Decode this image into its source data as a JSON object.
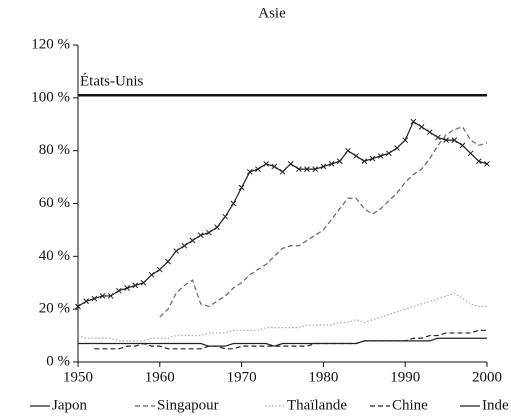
{
  "chart_data": {
    "type": "line",
    "title": "Asie",
    "x": [
      1950,
      1951,
      1952,
      1953,
      1954,
      1955,
      1956,
      1957,
      1958,
      1959,
      1960,
      1961,
      1962,
      1963,
      1964,
      1965,
      1966,
      1967,
      1968,
      1969,
      1970,
      1971,
      1972,
      1973,
      1974,
      1975,
      1976,
      1977,
      1978,
      1979,
      1980,
      1981,
      1982,
      1983,
      1984,
      1985,
      1986,
      1987,
      1988,
      1989,
      1990,
      1991,
      1992,
      1993,
      1994,
      1995,
      1996,
      1997,
      1998,
      1999,
      2000
    ],
    "series": [
      {
        "name": "Japon",
        "color": "#222222",
        "style": "solid",
        "marker": "x",
        "values": [
          21,
          23,
          24,
          25,
          25,
          27,
          28,
          29,
          30,
          33,
          35,
          38,
          42,
          44,
          46,
          48,
          49,
          51,
          55,
          60,
          66,
          72,
          73,
          75,
          74,
          72,
          75,
          73,
          73,
          73,
          74,
          75,
          76,
          80,
          78,
          76,
          77,
          78,
          79,
          81,
          84,
          91,
          89,
          87,
          85,
          84,
          84,
          82,
          79,
          76,
          75
        ]
      },
      {
        "name": "Singapour",
        "color": "#666666",
        "style": "dashed",
        "values": [
          null,
          null,
          null,
          null,
          null,
          null,
          null,
          null,
          null,
          null,
          17,
          20,
          26,
          29,
          31,
          22,
          21,
          23,
          25,
          28,
          30,
          33,
          35,
          37,
          40,
          43,
          44,
          44,
          46,
          48,
          50,
          54,
          58,
          62,
          62,
          58,
          56,
          58,
          61,
          64,
          68,
          71,
          73,
          77,
          82,
          86,
          88,
          89,
          84,
          82,
          83
        ]
      },
      {
        "name": "Thaïlande",
        "color": "#aaaaaa",
        "style": "dotted",
        "values": [
          10,
          9,
          9,
          9,
          9,
          8,
          8,
          8,
          8,
          9,
          9,
          9,
          10,
          10,
          10,
          10,
          11,
          11,
          11,
          12,
          12,
          12,
          12,
          13,
          13,
          13,
          13,
          13,
          14,
          14,
          14,
          14,
          15,
          15,
          16,
          15,
          16,
          17,
          18,
          19,
          20,
          21,
          22,
          23,
          24,
          25,
          26,
          24,
          22,
          21,
          21
        ]
      },
      {
        "name": "Chine",
        "color": "#222222",
        "style": "dashed",
        "values": [
          null,
          null,
          5,
          5,
          5,
          5,
          6,
          6,
          7,
          6,
          6,
          5,
          5,
          5,
          5,
          5,
          6,
          6,
          5,
          5,
          6,
          6,
          6,
          6,
          6,
          6,
          6,
          6,
          6,
          7,
          7,
          7,
          7,
          7,
          7,
          8,
          8,
          8,
          8,
          8,
          8,
          9,
          9,
          10,
          10,
          11,
          11,
          11,
          11,
          12,
          12
        ]
      },
      {
        "name": "Inde",
        "color": "#222222",
        "style": "solid",
        "values": [
          7,
          7,
          7,
          7,
          7,
          7,
          7,
          7,
          7,
          7,
          7,
          7,
          7,
          7,
          7,
          7,
          6,
          6,
          6,
          7,
          7,
          7,
          7,
          7,
          6,
          7,
          7,
          7,
          7,
          7,
          7,
          7,
          7,
          7,
          7,
          8,
          8,
          8,
          8,
          8,
          8,
          8,
          8,
          8,
          9,
          9,
          9,
          9,
          9,
          9,
          9
        ]
      }
    ],
    "reference_line": {
      "label": "États-Unis",
      "y": 101
    },
    "xlim": [
      1950,
      2000
    ],
    "xticks": [
      1950,
      1960,
      1970,
      1980,
      1990,
      2000
    ],
    "ylim": [
      0,
      120
    ],
    "yticks": [
      {
        "value": 0,
        "label": "0 %"
      },
      {
        "value": 20,
        "label": "20 %"
      },
      {
        "value": 40,
        "label": "40 %"
      },
      {
        "value": 60,
        "label": "60 %"
      },
      {
        "value": 80,
        "label": "80 %"
      },
      {
        "value": 100,
        "label": "100 %"
      },
      {
        "value": 120,
        "label": "120 %"
      }
    ],
    "legend": "bottom"
  }
}
